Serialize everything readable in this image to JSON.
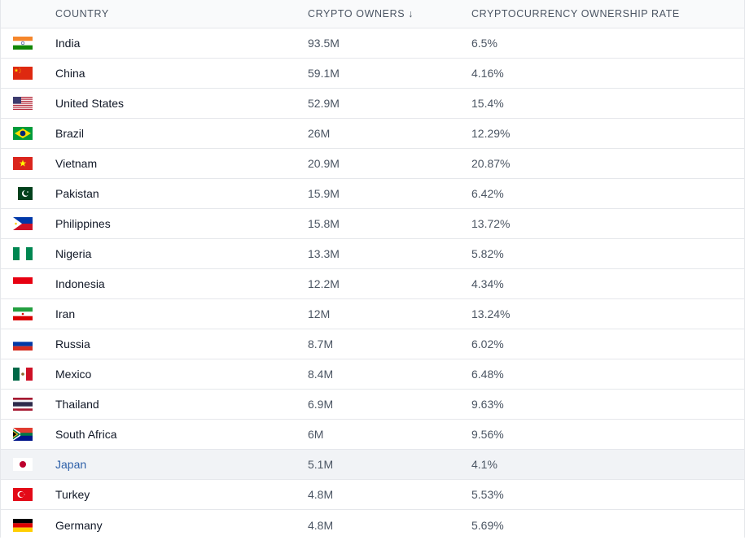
{
  "header": {
    "country": "COUNTRY",
    "owners": "CRYPTO OWNERS",
    "owners_sort_icon": "↓",
    "rate": "CRYPTOCURRENCY OWNERSHIP RATE"
  },
  "rows": [
    {
      "country": "India",
      "owners": "93.5M",
      "rate": "6.5%",
      "flag": "india-flag-icon"
    },
    {
      "country": "China",
      "owners": "59.1M",
      "rate": "4.16%",
      "flag": "china-flag-icon"
    },
    {
      "country": "United States",
      "owners": "52.9M",
      "rate": "15.4%",
      "flag": "usa-flag-icon"
    },
    {
      "country": "Brazil",
      "owners": "26M",
      "rate": "12.29%",
      "flag": "brazil-flag-icon"
    },
    {
      "country": "Vietnam",
      "owners": "20.9M",
      "rate": "20.87%",
      "flag": "vietnam-flag-icon"
    },
    {
      "country": "Pakistan",
      "owners": "15.9M",
      "rate": "6.42%",
      "flag": "pakistan-flag-icon"
    },
    {
      "country": "Philippines",
      "owners": "15.8M",
      "rate": "13.72%",
      "flag": "philippines-flag-icon"
    },
    {
      "country": "Nigeria",
      "owners": "13.3M",
      "rate": "5.82%",
      "flag": "nigeria-flag-icon"
    },
    {
      "country": "Indonesia",
      "owners": "12.2M",
      "rate": "4.34%",
      "flag": "indonesia-flag-icon"
    },
    {
      "country": "Iran",
      "owners": "12M",
      "rate": "13.24%",
      "flag": "iran-flag-icon"
    },
    {
      "country": "Russia",
      "owners": "8.7M",
      "rate": "6.02%",
      "flag": "russia-flag-icon"
    },
    {
      "country": "Mexico",
      "owners": "8.4M",
      "rate": "6.48%",
      "flag": "mexico-flag-icon"
    },
    {
      "country": "Thailand",
      "owners": "6.9M",
      "rate": "9.63%",
      "flag": "thailand-flag-icon"
    },
    {
      "country": "South Africa",
      "owners": "6M",
      "rate": "9.56%",
      "flag": "south-africa-flag-icon"
    },
    {
      "country": "Japan",
      "owners": "5.1M",
      "rate": "4.1%",
      "flag": "japan-flag-icon"
    },
    {
      "country": "Turkey",
      "owners": "4.8M",
      "rate": "5.53%",
      "flag": "turkey-flag-icon"
    },
    {
      "country": "Germany",
      "owners": "4.8M",
      "rate": "5.69%",
      "flag": "germany-flag-icon"
    }
  ],
  "colors": {
    "highlight_row": "#f1f3f6",
    "link_blue": "#2c5fa8",
    "header_bg": "#f9fafb",
    "border": "#e5e7eb"
  }
}
